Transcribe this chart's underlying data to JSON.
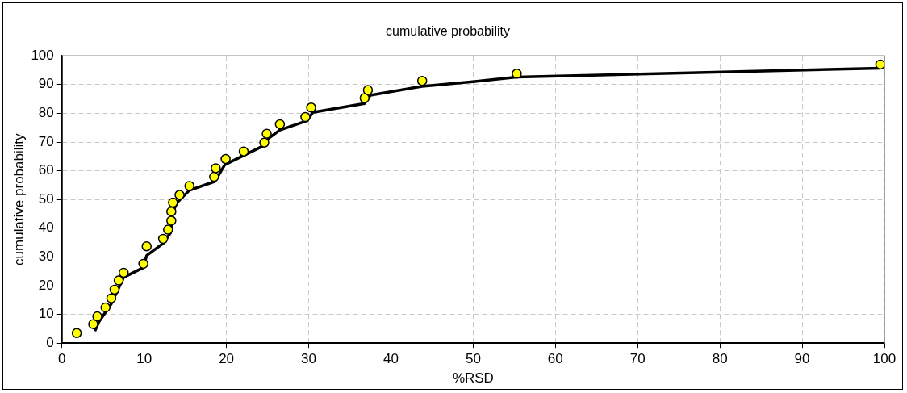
{
  "chart_data": {
    "type": "scatter",
    "title": "cumulative probability",
    "xlabel": "%RSD",
    "ylabel": "cumulative probability",
    "xlim": [
      0,
      100
    ],
    "xticks": [
      0,
      10,
      20,
      30,
      40,
      50,
      60,
      70,
      80,
      90,
      100
    ],
    "ylim": [
      0,
      100
    ],
    "yticks": [
      0,
      10,
      20,
      30,
      40,
      50,
      60,
      70,
      80,
      90,
      100
    ],
    "grid": true,
    "legend": false,
    "marker": "circle",
    "series": [
      {
        "type": "scatter",
        "color": "#ffff00",
        "x": [
          1.8,
          3.8,
          4.3,
          5.3,
          6.0,
          6.4,
          6.9,
          7.5,
          9.9,
          10.3,
          12.3,
          12.9,
          13.3,
          13.3,
          13.5,
          14.3,
          15.5,
          18.5,
          18.7,
          19.9,
          22.1,
          24.6,
          24.9,
          26.5,
          29.6,
          30.3,
          36.8,
          37.2,
          43.8,
          55.3,
          99.5
        ],
        "values": [
          3.5,
          6.6,
          9.3,
          12.4,
          15.6,
          18.6,
          21.8,
          24.5,
          27.6,
          33.7,
          36.3,
          39.5,
          42.6,
          45.8,
          48.9,
          51.6,
          54.7,
          57.9,
          60.9,
          64.1,
          66.7,
          69.8,
          72.9,
          76.2,
          78.7,
          82.0,
          85.3,
          88.1,
          91.3,
          93.8,
          97.0
        ]
      },
      {
        "type": "line",
        "color": "#000000",
        "marker": "none",
        "line_style": "solid",
        "x": [
          4.0,
          4.5,
          6.0,
          7.5,
          9.9,
          10.3,
          12.3,
          13.2,
          13.5,
          14.0,
          15.5,
          18.6,
          19.8,
          24.5,
          25.0,
          26.5,
          29.8,
          30.5,
          36.8,
          37.5,
          43.8,
          50.2,
          55.3,
          99.5
        ],
        "values": [
          4.2,
          7.4,
          13.7,
          22.9,
          26.3,
          30.5,
          34.7,
          38.4,
          45.8,
          48.9,
          53.2,
          56.3,
          62.1,
          68.7,
          71.0,
          74.2,
          77.4,
          80.3,
          83.4,
          86.3,
          89.4,
          91.1,
          92.6,
          95.7
        ]
      }
    ]
  }
}
